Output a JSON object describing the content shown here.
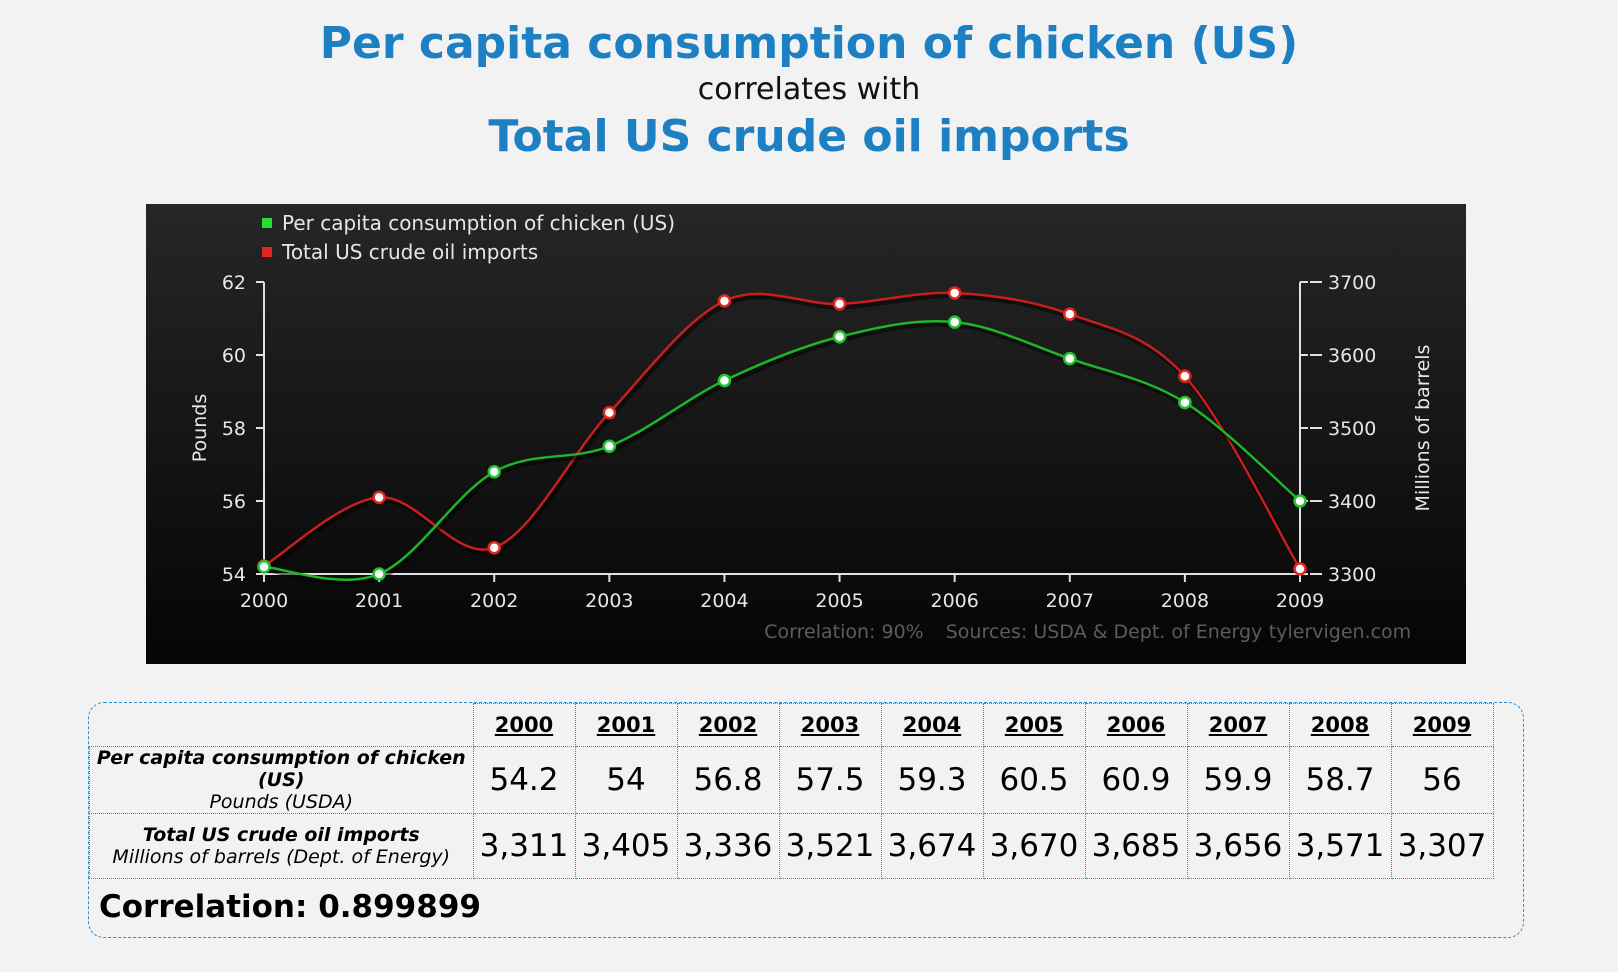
{
  "header": {
    "title": "Per capita consumption of chicken (US)",
    "middle": "correlates with",
    "subtitle": "Total US crude oil imports"
  },
  "chart_data": {
    "type": "line",
    "x": [
      "2000",
      "2001",
      "2002",
      "2003",
      "2004",
      "2005",
      "2006",
      "2007",
      "2008",
      "2009"
    ],
    "series": [
      {
        "name": "Per capita consumption of chicken (US)",
        "axis": "left",
        "color": "#22c52e",
        "values": [
          54.2,
          54,
          56.8,
          57.5,
          59.3,
          60.5,
          60.9,
          59.9,
          58.7,
          56
        ]
      },
      {
        "name": "Total US crude oil imports",
        "axis": "right",
        "color": "#e3261f",
        "values": [
          3311,
          3405,
          3336,
          3521,
          3674,
          3670,
          3685,
          3656,
          3571,
          3307
        ]
      }
    ],
    "y_left": {
      "label": "Pounds",
      "min": 54,
      "max": 62,
      "ticks": [
        "54",
        "56",
        "58",
        "60",
        "62"
      ]
    },
    "y_right": {
      "label": "Millions of barrels",
      "min": 3300,
      "max": 3700,
      "ticks": [
        "3300",
        "3400",
        "3500",
        "3600",
        "3700"
      ]
    },
    "legend_position": "top-left",
    "footer": {
      "correlation": "Correlation: 90%",
      "sources": "Sources: USDA & Dept. of Energy",
      "site": "tylervigen.com"
    }
  },
  "table": {
    "years": [
      "2000",
      "2001",
      "2002",
      "2003",
      "2004",
      "2005",
      "2006",
      "2007",
      "2008",
      "2009"
    ],
    "rows": [
      {
        "label": "Per capita consumption of chicken (US)",
        "unit": "Pounds (USDA)",
        "values": [
          "54.2",
          "54",
          "56.8",
          "57.5",
          "59.3",
          "60.5",
          "60.9",
          "59.9",
          "58.7",
          "56"
        ]
      },
      {
        "label": "Total US crude oil imports",
        "unit": "Millions of barrels (Dept. of Energy)",
        "values": [
          "3,311",
          "3,405",
          "3,336",
          "3,521",
          "3,674",
          "3,670",
          "3,685",
          "3,656",
          "3,571",
          "3,307"
        ]
      }
    ],
    "correlation": "Correlation: 0.899899"
  }
}
